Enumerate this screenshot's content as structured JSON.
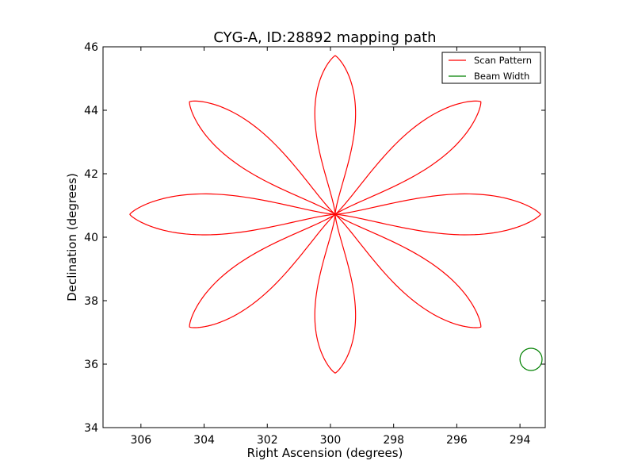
{
  "chart_data": {
    "type": "line",
    "title": "CYG-A, ID:28892 mapping path",
    "xlabel": "Right Ascension (degrees)",
    "ylabel": "Declination (degrees)",
    "xlim": [
      307.2,
      293.2
    ],
    "ylim": [
      34,
      46
    ],
    "xticks": [
      306,
      304,
      302,
      300,
      298,
      296,
      294
    ],
    "yticks": [
      34,
      36,
      38,
      40,
      42,
      44,
      46
    ],
    "grid": false,
    "legend_position": "top-right",
    "center": {
      "ra": 299.85,
      "dec": 40.72
    },
    "series": [
      {
        "name": "Scan Pattern",
        "color": "#ff0000",
        "petals": 8,
        "center": [
          299.85,
          40.72
        ],
        "tips": [
          [
            299.85,
            45.72
          ],
          [
            295.24,
            44.27
          ],
          [
            293.35,
            40.72
          ],
          [
            295.24,
            37.17
          ],
          [
            299.85,
            35.72
          ],
          [
            304.46,
            37.17
          ],
          [
            306.35,
            40.72
          ],
          [
            304.46,
            44.27
          ]
        ],
        "half_width": 0.9
      },
      {
        "name": "Beam Width",
        "color": "#008000",
        "center": [
          293.65,
          36.15
        ],
        "radius": 0.35
      }
    ]
  }
}
